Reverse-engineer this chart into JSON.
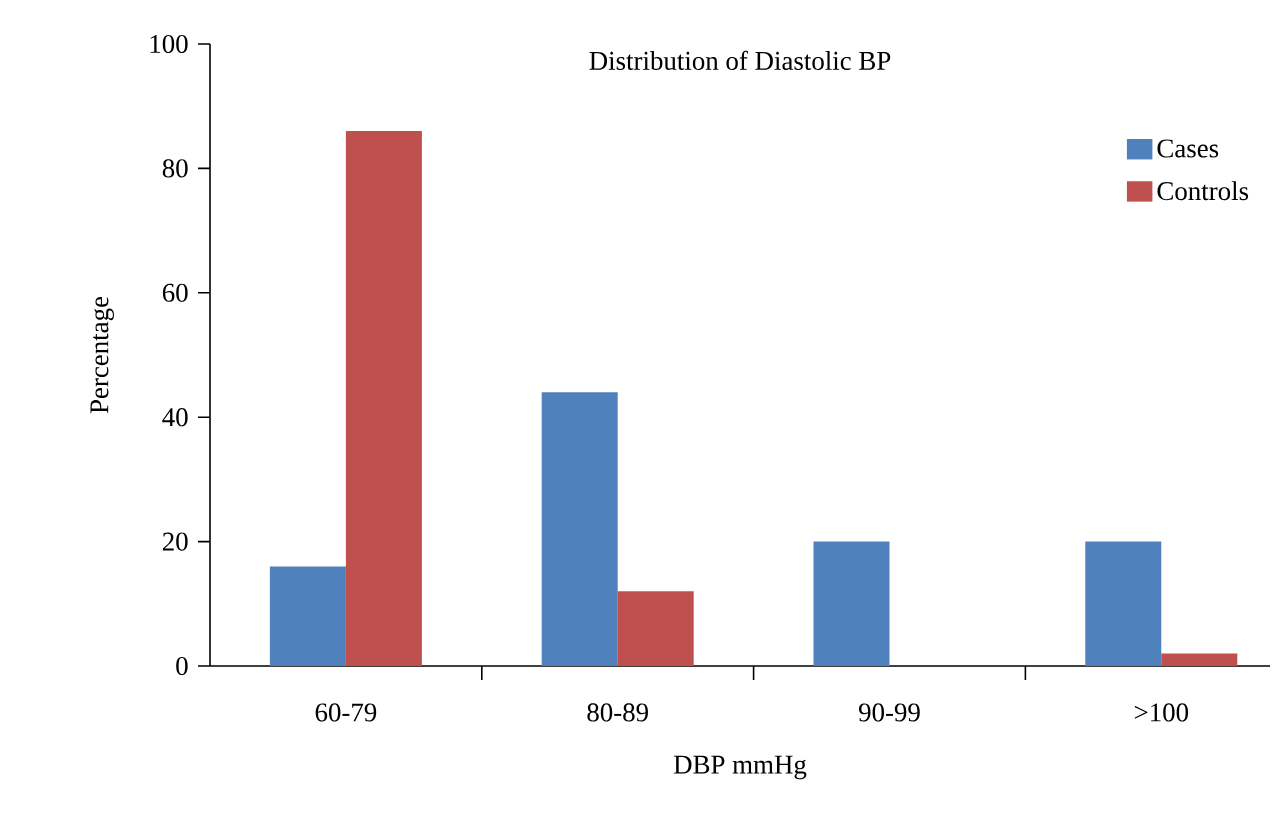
{
  "chart_data": {
    "type": "bar",
    "title": "Distribution of Diastolic BP",
    "xlabel": "DBP mmHg",
    "ylabel": "Percentage",
    "categories": [
      "60-79",
      "80-89",
      "90-99",
      ">100"
    ],
    "series": [
      {
        "name": "Cases",
        "color": "#4f81bd",
        "values": [
          16,
          44,
          20,
          20
        ]
      },
      {
        "name": "Controls",
        "color": "#c0504d",
        "values": [
          86,
          12,
          0,
          2
        ]
      }
    ],
    "ylim": [
      0,
      100
    ],
    "yticks": [
      0,
      20,
      40,
      60,
      80,
      100
    ],
    "grid": false,
    "legend": "top right"
  }
}
